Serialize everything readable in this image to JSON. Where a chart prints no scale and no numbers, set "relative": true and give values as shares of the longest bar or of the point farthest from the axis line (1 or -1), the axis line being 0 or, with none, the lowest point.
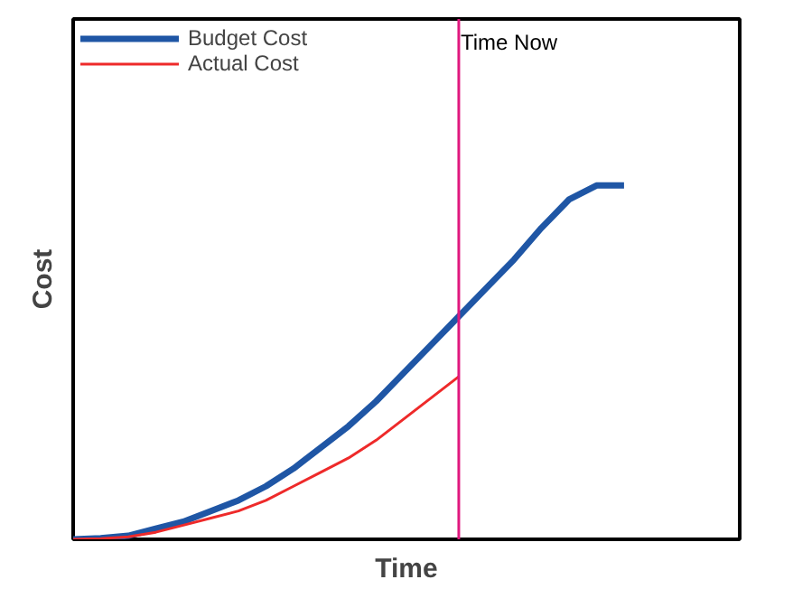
{
  "chart_data": {
    "type": "line",
    "relative": true,
    "xlabel": "Time",
    "ylabel": "Cost",
    "categories": [
      null,
      null,
      null,
      null,
      null,
      null,
      null,
      null,
      null,
      null,
      null,
      null,
      null,
      null,
      null,
      null,
      null,
      null,
      null,
      null,
      null
    ],
    "series": [
      {
        "name": "Budget Cost",
        "color": "#1f56a5",
        "values": [
          0,
          0.003,
          0.01,
          0.03,
          0.05,
          0.08,
          0.11,
          0.15,
          0.2,
          0.26,
          0.32,
          0.39,
          0.47,
          0.55,
          0.63,
          0.71,
          0.79,
          0.88,
          0.96,
          1.0,
          1.0
        ]
      },
      {
        "name": "Actual Cost",
        "color": "#ee2a2a",
        "values": [
          0,
          0.002,
          0.007,
          0.02,
          0.04,
          0.06,
          0.08,
          0.11,
          0.15,
          0.19,
          0.23,
          0.28,
          0.34,
          0.4,
          0.46,
          null,
          null,
          null,
          null,
          null,
          null
        ]
      }
    ],
    "annotations": [
      "Time Now"
    ],
    "legend": "top left",
    "grid": false,
    "marker": "none",
    "line_style": "solid"
  }
}
